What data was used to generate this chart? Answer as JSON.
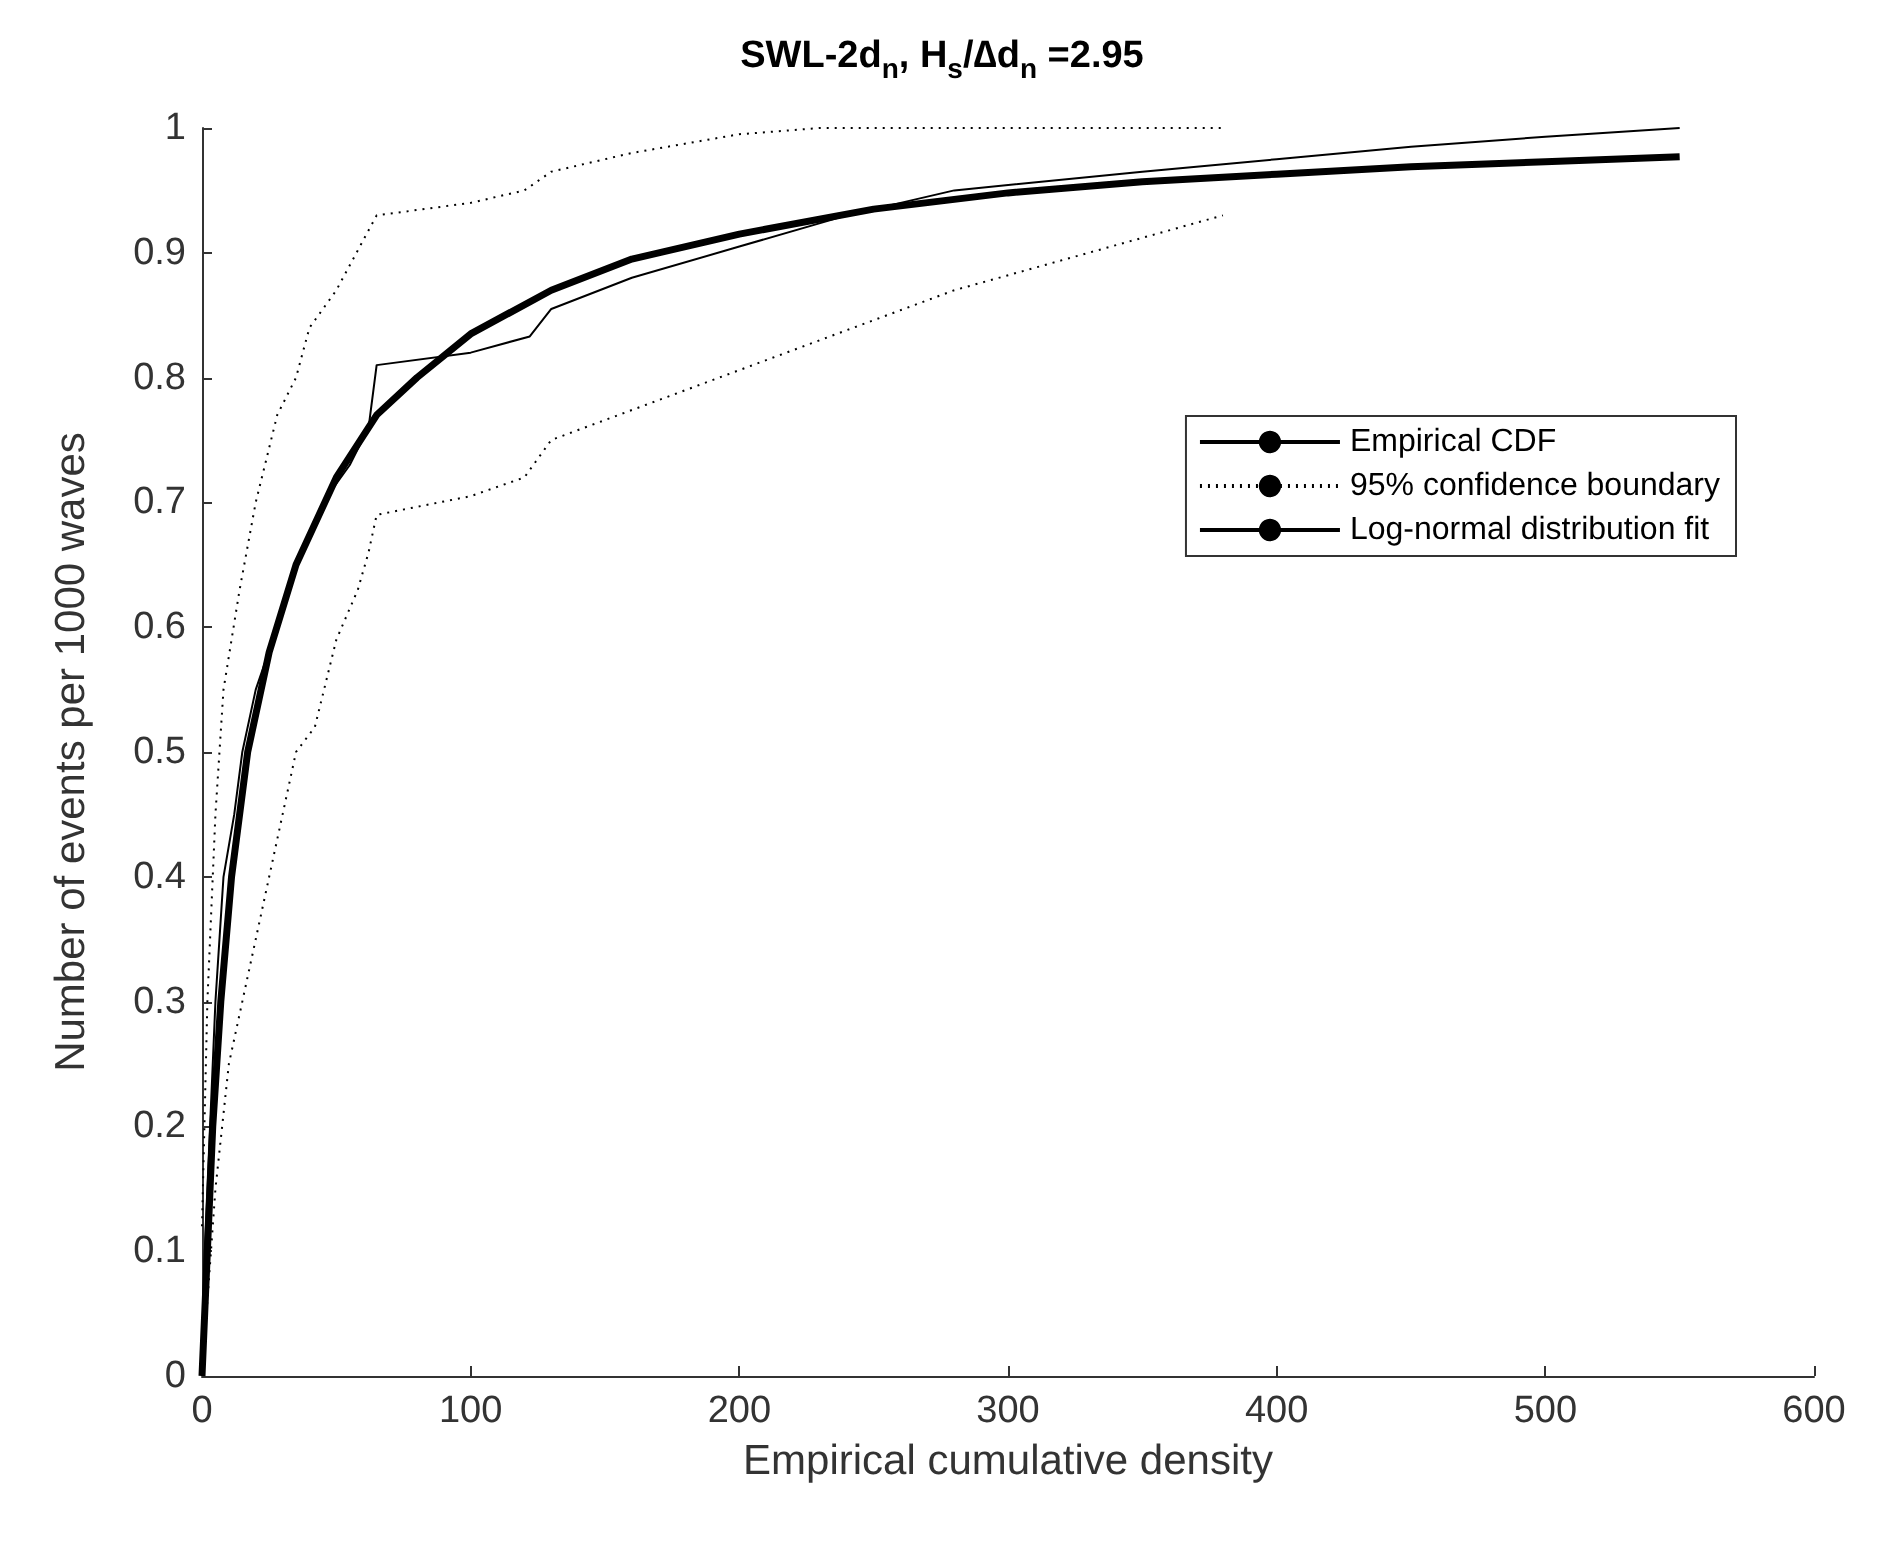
{
  "chart_data": {
    "type": "line",
    "title": "SWL-2d$_{n}$, H$_{s}$/∆d$_{n}$ =2.95",
    "xlabel": "Empirical cumulative density",
    "ylabel": "Number of events per 1000 waves",
    "xlim": [
      0,
      600
    ],
    "xticks": [
      0,
      100,
      200,
      300,
      400,
      500,
      600
    ],
    "ylim": [
      0,
      1
    ],
    "yticks": [
      0,
      0.1,
      0.2,
      0.3,
      0.4,
      0.5,
      0.6,
      0.7,
      0.8,
      0.9,
      1
    ],
    "grid": false,
    "legend": "top right",
    "marker": "none",
    "series": [
      {
        "name": "Empirical CDF",
        "color": "#000000",
        "line_style": "solid",
        "x": [
          0,
          1,
          3,
          5,
          8,
          12,
          15,
          20,
          28,
          35,
          45,
          55,
          62,
          65,
          100,
          122,
          130,
          160,
          200,
          240,
          280,
          350,
          400,
          450,
          500,
          550
        ],
        "values": [
          0,
          0.1,
          0.2,
          0.3,
          0.4,
          0.45,
          0.5,
          0.55,
          0.6,
          0.65,
          0.7,
          0.73,
          0.76,
          0.81,
          0.82,
          0.833,
          0.855,
          0.88,
          0.905,
          0.93,
          0.95,
          0.965,
          0.975,
          0.985,
          0.993,
          1.0
        ]
      },
      {
        "name": "95% confidence boundary",
        "color": "#000000",
        "line_style": "dotted",
        "x": [
          0,
          2,
          5,
          8,
          14,
          20,
          28,
          35,
          40,
          50,
          55,
          65,
          100,
          120,
          130,
          160,
          200,
          230,
          380
        ],
        "values": [
          0.12,
          0.3,
          0.45,
          0.55,
          0.63,
          0.7,
          0.77,
          0.8,
          0.84,
          0.87,
          0.89,
          0.93,
          0.94,
          0.95,
          0.965,
          0.98,
          0.995,
          1.0,
          1.0
        ]
      },
      {
        "color": "#000000",
        "line_style": "dotted",
        "x": [
          0,
          5,
          10,
          15,
          25,
          35,
          42,
          50,
          58,
          62,
          65,
          100,
          120,
          130,
          180,
          230,
          280,
          330,
          380
        ],
        "values": [
          0,
          0.15,
          0.25,
          0.3,
          0.4,
          0.5,
          0.52,
          0.59,
          0.63,
          0.66,
          0.69,
          0.705,
          0.72,
          0.75,
          0.79,
          0.83,
          0.87,
          0.9,
          0.93
        ]
      },
      {
        "name": "Log-normal distribution fit",
        "color": "#000000",
        "line_style": "solid",
        "x": [
          0,
          2,
          4,
          7,
          11,
          17,
          25,
          35,
          50,
          65,
          80,
          100,
          130,
          160,
          200,
          250,
          300,
          350,
          400,
          450,
          500,
          550
        ],
        "values": [
          0,
          0.1,
          0.2,
          0.3,
          0.4,
          0.5,
          0.58,
          0.65,
          0.72,
          0.77,
          0.8,
          0.835,
          0.87,
          0.895,
          0.915,
          0.935,
          0.948,
          0.957,
          0.963,
          0.969,
          0.973,
          0.977
        ]
      }
    ]
  }
}
